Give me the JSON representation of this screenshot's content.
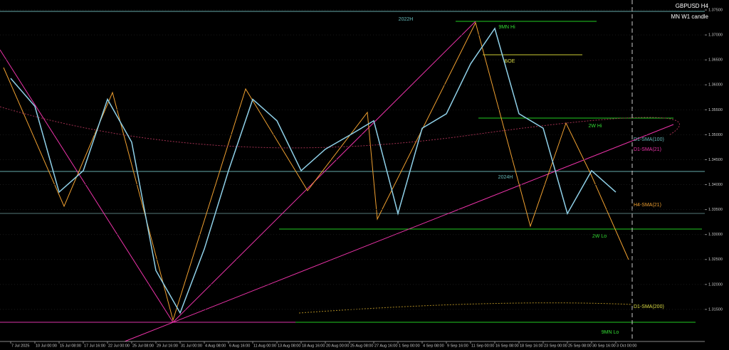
{
  "chart_data": {
    "type": "line",
    "title": "GBPUSD H4",
    "subtitle": "MN W1 candle",
    "annotations": [
      "2022H",
      "9MN Hi",
      "BOE",
      "2W Hi",
      "2024H",
      "2W Lo",
      "9MN Lo",
      "D1-SMA(100)",
      "D1-SMA(21)",
      "H4-SMA(21)",
      "D1-SMA(200)"
    ],
    "categories": [
      "7 Jul 2025",
      "10 Jul 00:00",
      "15 Jul 08:00",
      "17 Jul 16:00",
      "22 Jul 00:00",
      "25 Jul 08:00",
      "29 Jul 16:00",
      "31 Jul 00:00",
      "4 Aug 08:00",
      "6 Aug 16:00",
      "11 Aug 00:00",
      "13 Aug 08:00",
      "18 Aug 16:00",
      "20 Aug 00:00",
      "25 Aug 08:00",
      "27 Aug 16:00",
      "1 Sep 00:00",
      "4 Sep 08:00",
      "9 Sep 16:00",
      "11 Sep 00:00",
      "16 Sep 08:00",
      "18 Sep 16:00",
      "23 Sep 00:00",
      "25 Sep 08:00",
      "30 Sep 16:00",
      "3 Oct 00:00"
    ],
    "series": [
      {
        "name": "GBPUSD",
        "color": "#8fd0e8",
        "values": [
          1.3613,
          1.3557,
          1.3385,
          1.3428,
          1.3571,
          1.3485,
          1.3228,
          1.3143,
          1.3271,
          1.3428,
          1.3571,
          1.3528,
          1.3428,
          1.3471,
          1.3499,
          1.3528,
          1.3342,
          1.3513,
          1.3542,
          1.3642,
          1.3713,
          1.3542,
          1.3513,
          1.3342,
          1.3428,
          1.3385
        ]
      }
    ],
    "ylim": [
      1.31,
      1.377
    ],
    "yticks": [
      {
        "value": 1.315,
        "label": "1.31500"
      },
      {
        "value": 1.32,
        "label": "1.32000"
      },
      {
        "value": 1.325,
        "label": "1.32500"
      },
      {
        "value": 1.33,
        "label": "1.33000"
      },
      {
        "value": 1.335,
        "label": "1.33500"
      },
      {
        "value": 1.34,
        "label": "1.34000"
      },
      {
        "value": 1.345,
        "label": "1.34500"
      },
      {
        "value": 1.35,
        "label": "1.35000"
      },
      {
        "value": 1.355,
        "label": "1.35500"
      },
      {
        "value": 1.36,
        "label": "1.36000"
      },
      {
        "value": 1.365,
        "label": "1.36500"
      },
      {
        "value": 1.37,
        "label": "1.37000"
      },
      {
        "value": 1.375,
        "label": "1.37500"
      }
    ],
    "grid": true
  }
}
